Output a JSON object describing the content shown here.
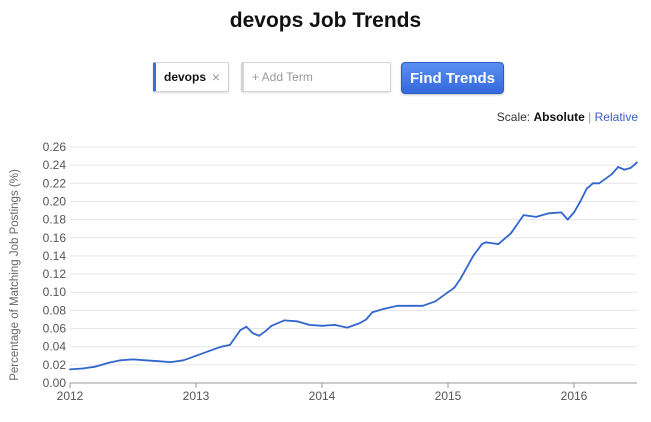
{
  "title": "devops Job Trends",
  "search": {
    "term": "devops",
    "remove_glyph": "×",
    "add_placeholder": "+ Add Term",
    "button_label": "Find Trends"
  },
  "scale": {
    "label": "Scale:",
    "absolute": "Absolute",
    "separator": "|",
    "relative": "Relative",
    "selected": "Absolute"
  },
  "icons": {
    "remove": "close-icon"
  },
  "colors": {
    "line": "#3366cc",
    "button": "#3b6fd1",
    "link": "#3a5fc8"
  },
  "chart_data": {
    "type": "line",
    "title": "",
    "xlabel": "",
    "ylabel": "Percentage of Matching Job Postings (%)",
    "xlim": [
      2012.0,
      2016.5
    ],
    "ylim": [
      0,
      0.26
    ],
    "x_ticks": [
      2012,
      2013,
      2014,
      2015,
      2016
    ],
    "y_ticks": [
      0.0,
      0.02,
      0.04,
      0.06,
      0.08,
      0.1,
      0.12,
      0.14,
      0.16,
      0.18,
      0.2,
      0.22,
      0.24,
      0.26
    ],
    "grid": true,
    "legend": "none",
    "series": [
      {
        "name": "devops",
        "x": [
          2012.0,
          2012.1,
          2012.2,
          2012.3,
          2012.4,
          2012.5,
          2012.6,
          2012.7,
          2012.8,
          2012.9,
          2013.0,
          2013.1,
          2013.2,
          2013.27,
          2013.35,
          2013.4,
          2013.45,
          2013.5,
          2013.55,
          2013.6,
          2013.7,
          2013.8,
          2013.9,
          2014.0,
          2014.1,
          2014.2,
          2014.3,
          2014.35,
          2014.4,
          2014.5,
          2014.6,
          2014.7,
          2014.8,
          2014.9,
          2015.0,
          2015.05,
          2015.1,
          2015.2,
          2015.27,
          2015.3,
          2015.4,
          2015.5,
          2015.6,
          2015.7,
          2015.8,
          2015.9,
          2015.95,
          2016.0,
          2016.05,
          2016.1,
          2016.15,
          2016.2,
          2016.3,
          2016.35,
          2016.4,
          2016.45,
          2016.5
        ],
        "values": [
          0.015,
          0.016,
          0.018,
          0.022,
          0.025,
          0.026,
          0.025,
          0.024,
          0.023,
          0.025,
          0.03,
          0.035,
          0.04,
          0.042,
          0.058,
          0.062,
          0.055,
          0.052,
          0.057,
          0.063,
          0.069,
          0.068,
          0.064,
          0.063,
          0.064,
          0.061,
          0.066,
          0.07,
          0.078,
          0.082,
          0.085,
          0.085,
          0.085,
          0.09,
          0.1,
          0.105,
          0.115,
          0.14,
          0.153,
          0.155,
          0.153,
          0.165,
          0.185,
          0.183,
          0.187,
          0.188,
          0.18,
          0.188,
          0.2,
          0.214,
          0.22,
          0.22,
          0.23,
          0.238,
          0.235,
          0.237,
          0.243
        ]
      }
    ]
  }
}
